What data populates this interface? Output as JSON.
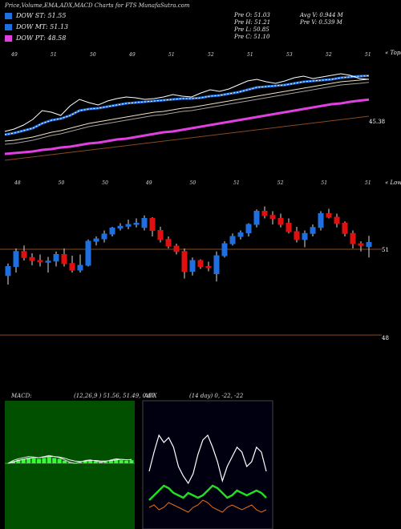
{
  "header": {
    "title": "Price,Volume,EMA,ADX,MACD Charts for FTS MunafaSutra.com"
  },
  "legend": [
    {
      "label": "DOW ST: 51.55",
      "color": "#1f6fe0"
    },
    {
      "label": "DOW MT: 51.13",
      "color": "#1f6fe0"
    },
    {
      "label": "DOW PT: 48.58",
      "color": "#e040e0"
    }
  ],
  "ohlc": {
    "open": "Pre  O: 51.03",
    "high": "Pre  H: 51.21",
    "low": "Pre  L: 50.85",
    "close": "Pre  C: 51.10",
    "avg_vol": "Avg V: 0.944  M",
    "pre_vol": "Pre  V: 0.539 M"
  },
  "price_panel": {
    "label_right": "« Topa",
    "level_label": "45.38",
    "top_ticks": [
      "49",
      "51",
      "50",
      "49",
      "51",
      "52",
      "51",
      "53",
      "52",
      "51"
    ]
  },
  "candle_panel": {
    "label_right": "« Lown",
    "level_51": "51",
    "level_48": "48",
    "top_ticks": [
      "48",
      "50",
      "50",
      "49",
      "50",
      "51",
      "52",
      "51",
      "51"
    ]
  },
  "macd": {
    "label": "MACD:",
    "params": "(12,26,9 ) 51.56, 51.49, 0.07"
  },
  "adx": {
    "label": "ADX",
    "params": "(14  day) 0, -22, -22"
  },
  "colors": {
    "up": "#1f6fe0",
    "down": "#e01010",
    "ema_fast": "#1f6fe0",
    "ema_slow": "#e040e0",
    "level": "#8a4a20"
  },
  "chart_data": [
    {
      "type": "line",
      "title": "Price with EMAs",
      "series": [
        {
          "name": "Close",
          "values": [
            44.6,
            44.9,
            45.4,
            46.1,
            47.2,
            47.0,
            46.6,
            47.8,
            48.6,
            48.2,
            47.9,
            48.4,
            48.7,
            48.9,
            48.8,
            48.6,
            48.7,
            48.9,
            49.2,
            49.0,
            48.9,
            49.4,
            49.8,
            49.6,
            49.9,
            50.4,
            50.9,
            51.1,
            50.8,
            50.6,
            50.9,
            51.3,
            51.5,
            51.2,
            51.4,
            51.6,
            51.8,
            51.6,
            51.2,
            51.1
          ]
        },
        {
          "name": "DOW ST",
          "values": [
            44.2,
            44.4,
            44.7,
            45.0,
            45.6,
            46.0,
            46.2,
            46.6,
            47.2,
            47.4,
            47.5,
            47.7,
            47.9,
            48.1,
            48.2,
            48.3,
            48.4,
            48.5,
            48.6,
            48.7,
            48.7,
            48.8,
            49.0,
            49.1,
            49.3,
            49.5,
            49.8,
            50.1,
            50.2,
            50.3,
            50.4,
            50.6,
            50.8,
            50.9,
            51.0,
            51.1,
            51.3,
            51.4,
            51.5,
            51.55
          ]
        },
        {
          "name": "DOW MT",
          "values": [
            43.4,
            43.5,
            43.7,
            43.9,
            44.2,
            44.5,
            44.7,
            45.0,
            45.3,
            45.6,
            45.8,
            46.0,
            46.2,
            46.4,
            46.6,
            46.8,
            47.0,
            47.1,
            47.3,
            47.5,
            47.6,
            47.8,
            48.0,
            48.2,
            48.4,
            48.6,
            48.8,
            49.0,
            49.2,
            49.4,
            49.6,
            49.8,
            50.0,
            50.2,
            50.4,
            50.6,
            50.8,
            50.9,
            51.0,
            51.13
          ]
        },
        {
          "name": "DOW PT",
          "values": [
            41.8,
            41.9,
            42.0,
            42.1,
            42.3,
            42.4,
            42.6,
            42.7,
            42.9,
            43.1,
            43.2,
            43.4,
            43.6,
            43.7,
            43.9,
            44.1,
            44.3,
            44.5,
            44.6,
            44.8,
            45.0,
            45.2,
            45.4,
            45.6,
            45.8,
            46.0,
            46.2,
            46.4,
            46.6,
            46.8,
            47.0,
            47.2,
            47.4,
            47.6,
            47.8,
            48.0,
            48.1,
            48.3,
            48.45,
            48.58
          ]
        }
      ]
    },
    {
      "type": "candlestick",
      "title": "Recent candles",
      "candles": [
        {
          "o": 50.55,
          "h": 50.75,
          "l": 50.4,
          "c": 50.7
        },
        {
          "o": 50.7,
          "h": 51.0,
          "l": 50.6,
          "c": 50.95
        },
        {
          "o": 50.95,
          "h": 51.05,
          "l": 50.8,
          "c": 50.85
        },
        {
          "o": 50.85,
          "h": 50.92,
          "l": 50.72,
          "c": 50.8
        },
        {
          "o": 50.8,
          "h": 50.9,
          "l": 50.7,
          "c": 50.78
        },
        {
          "o": 50.78,
          "h": 50.86,
          "l": 50.6,
          "c": 50.79
        },
        {
          "o": 50.79,
          "h": 50.95,
          "l": 50.7,
          "c": 50.9
        },
        {
          "o": 50.9,
          "h": 51.0,
          "l": 50.7,
          "c": 50.75
        },
        {
          "o": 50.75,
          "h": 50.88,
          "l": 50.6,
          "c": 50.64
        },
        {
          "o": 50.64,
          "h": 50.9,
          "l": 50.6,
          "c": 50.72
        },
        {
          "o": 50.72,
          "h": 51.15,
          "l": 50.7,
          "c": 51.12
        },
        {
          "o": 51.12,
          "h": 51.2,
          "l": 51.05,
          "c": 51.16
        },
        {
          "o": 51.16,
          "h": 51.3,
          "l": 51.1,
          "c": 51.24
        },
        {
          "o": 51.24,
          "h": 51.36,
          "l": 51.2,
          "c": 51.34
        },
        {
          "o": 51.34,
          "h": 51.42,
          "l": 51.3,
          "c": 51.37
        },
        {
          "o": 51.37,
          "h": 51.48,
          "l": 51.32,
          "c": 51.4
        },
        {
          "o": 51.4,
          "h": 51.5,
          "l": 51.35,
          "c": 51.42
        },
        {
          "o": 51.35,
          "h": 51.55,
          "l": 51.3,
          "c": 51.5
        },
        {
          "o": 51.5,
          "h": 51.52,
          "l": 51.2,
          "c": 51.3
        },
        {
          "o": 51.3,
          "h": 51.36,
          "l": 51.1,
          "c": 51.15
        },
        {
          "o": 51.15,
          "h": 51.2,
          "l": 51.0,
          "c": 51.04
        },
        {
          "o": 51.04,
          "h": 51.08,
          "l": 50.9,
          "c": 50.95
        },
        {
          "o": 50.95,
          "h": 51.0,
          "l": 50.5,
          "c": 50.62
        },
        {
          "o": 50.62,
          "h": 50.85,
          "l": 50.55,
          "c": 50.8
        },
        {
          "o": 50.8,
          "h": 50.82,
          "l": 50.66,
          "c": 50.7
        },
        {
          "o": 50.7,
          "h": 50.78,
          "l": 50.62,
          "c": 50.68
        },
        {
          "o": 50.58,
          "h": 50.95,
          "l": 50.45,
          "c": 50.88
        },
        {
          "o": 50.88,
          "h": 51.12,
          "l": 50.85,
          "c": 51.08
        },
        {
          "o": 51.08,
          "h": 51.25,
          "l": 51.05,
          "c": 51.2
        },
        {
          "o": 51.2,
          "h": 51.3,
          "l": 51.15,
          "c": 51.26
        },
        {
          "o": 51.26,
          "h": 51.42,
          "l": 51.2,
          "c": 51.4
        },
        {
          "o": 51.4,
          "h": 51.65,
          "l": 51.35,
          "c": 51.62
        },
        {
          "o": 51.62,
          "h": 51.7,
          "l": 51.5,
          "c": 51.55
        },
        {
          "o": 51.55,
          "h": 51.62,
          "l": 51.4,
          "c": 51.5
        },
        {
          "o": 51.5,
          "h": 51.58,
          "l": 51.35,
          "c": 51.4
        },
        {
          "o": 51.42,
          "h": 51.5,
          "l": 51.25,
          "c": 51.28
        },
        {
          "o": 51.28,
          "h": 51.36,
          "l": 51.1,
          "c": 51.15
        },
        {
          "o": 51.15,
          "h": 51.3,
          "l": 51.02,
          "c": 51.25
        },
        {
          "o": 51.25,
          "h": 51.4,
          "l": 51.2,
          "c": 51.35
        },
        {
          "o": 51.35,
          "h": 51.62,
          "l": 51.3,
          "c": 51.58
        },
        {
          "o": 51.58,
          "h": 51.66,
          "l": 51.5,
          "c": 51.52
        },
        {
          "o": 51.52,
          "h": 51.58,
          "l": 51.35,
          "c": 51.42
        },
        {
          "o": 51.42,
          "h": 51.45,
          "l": 51.2,
          "c": 51.25
        },
        {
          "o": 51.25,
          "h": 51.3,
          "l": 51.0,
          "c": 51.08
        },
        {
          "o": 51.08,
          "h": 51.12,
          "l": 50.95,
          "c": 51.05
        },
        {
          "o": 51.03,
          "h": 51.21,
          "l": 50.85,
          "c": 51.1
        }
      ]
    },
    {
      "type": "line",
      "title": "MACD",
      "series": [
        {
          "name": "MACD",
          "values": [
            0.0,
            0.05,
            0.08,
            0.1,
            0.12,
            0.11,
            0.1,
            0.12,
            0.14,
            0.12,
            0.1,
            0.06,
            0.02,
            0.0,
            0.02,
            0.05,
            0.06,
            0.04,
            0.02,
            0.03,
            0.06,
            0.08,
            0.07,
            0.06,
            0.07
          ]
        },
        {
          "name": "Signal",
          "values": [
            0.0,
            0.02,
            0.05,
            0.07,
            0.09,
            0.1,
            0.1,
            0.11,
            0.12,
            0.12,
            0.11,
            0.09,
            0.06,
            0.04,
            0.03,
            0.04,
            0.05,
            0.05,
            0.04,
            0.04,
            0.05,
            0.06,
            0.07,
            0.065,
            0.065
          ]
        }
      ]
    },
    {
      "type": "line",
      "title": "ADX",
      "series": [
        {
          "name": "ADX",
          "values": [
            20,
            28,
            35,
            32,
            34,
            30,
            22,
            18,
            15,
            19,
            27,
            33,
            35,
            30,
            24,
            16,
            22,
            26,
            30,
            28,
            22,
            24,
            30,
            28,
            20
          ]
        },
        {
          "name": "+DI",
          "values": [
            8,
            10,
            12,
            14,
            13,
            11,
            10,
            9,
            11,
            10,
            9,
            10,
            12,
            14,
            13,
            11,
            9,
            10,
            12,
            11,
            10,
            11,
            12,
            11,
            9
          ]
        },
        {
          "name": "-DI",
          "values": [
            5,
            6,
            4,
            5,
            7,
            6,
            5,
            4,
            3,
            5,
            6,
            8,
            7,
            5,
            4,
            3,
            5,
            6,
            5,
            4,
            5,
            6,
            4,
            3,
            4
          ]
        }
      ]
    }
  ]
}
